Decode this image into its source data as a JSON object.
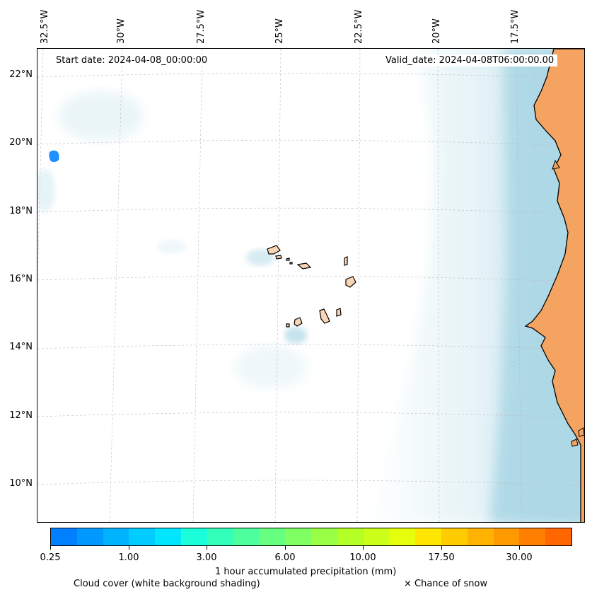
{
  "map": {
    "start_date": "Start date: 2024-04-08_00:00:00",
    "valid_date": "Valid_date: 2024-04-08T06:00:00.00",
    "lon_labels": [
      "32.5°W",
      "30°W",
      "27.5°W",
      "25°W",
      "22.5°W",
      "20°W",
      "17.5°W"
    ],
    "lat_labels": [
      "22°N",
      "20°N",
      "18°N",
      "16°N",
      "14°N",
      "12°N",
      "10°N"
    ],
    "land_color": "#f4a460",
    "island_color": "#f9d5b5",
    "cloud_color": "#add8e6",
    "precip_color": "#1e90ff"
  },
  "colorbar": {
    "colors": [
      "#0080ff",
      "#0099ff",
      "#00b3ff",
      "#00ccff",
      "#00e6ff",
      "#1affd9",
      "#33ffbb",
      "#4dff9d",
      "#66ff80",
      "#80ff62",
      "#99ff44",
      "#b3ff26",
      "#ccff1a",
      "#e6ff0d",
      "#ffe600",
      "#ffcc00",
      "#ffb300",
      "#ff9900",
      "#ff8000",
      "#ff6600"
    ],
    "tick_labels": [
      "0.25",
      "1.00",
      "3.00",
      "6.00",
      "10.00",
      "17.50",
      "30.00"
    ],
    "label": "1 hour accumulated precipitation (mm)"
  },
  "legend": {
    "cloud_cover": "Cloud cover (white background shading)",
    "snow": "× Chance of snow"
  }
}
